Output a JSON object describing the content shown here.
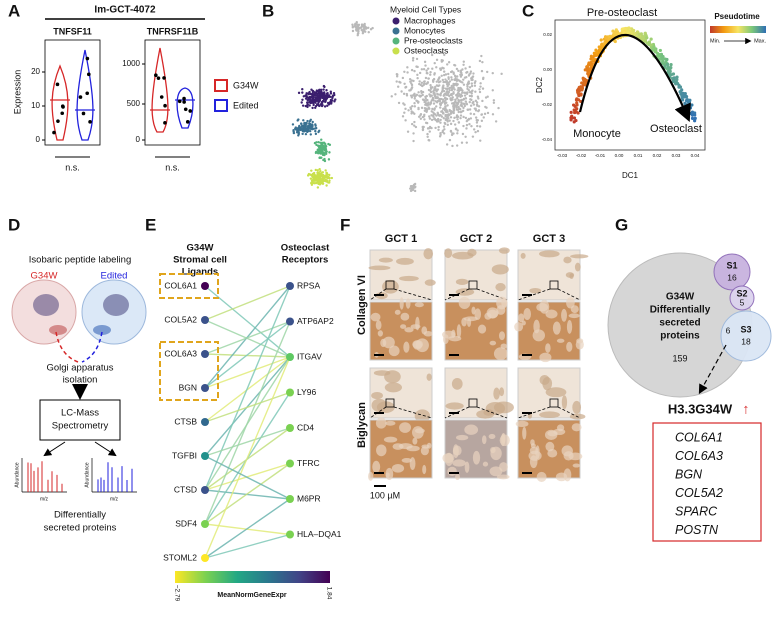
{
  "panels": {
    "a": {
      "label": "A",
      "title": "Im-GCT-4072",
      "ylabel": "Expression",
      "plots": [
        {
          "title": "TNFSF11",
          "yticks": [
            "0",
            "10",
            "20"
          ],
          "sig": "n.s."
        },
        {
          "title": "TNFRSF11B",
          "yticks": [
            "0",
            "500",
            "1000"
          ],
          "sig": "n.s."
        }
      ],
      "legend": [
        {
          "name": "G34W",
          "color": "#d62728"
        },
        {
          "name": "Edited",
          "color": "#2222dd"
        }
      ]
    },
    "b": {
      "label": "B",
      "legend_title": "Myeloid Cell Types",
      "legend": [
        {
          "name": "Macrophages",
          "color": "#3b1f6e"
        },
        {
          "name": "Monocytes",
          "color": "#3a7191"
        },
        {
          "name": "Pre-osteoclasts",
          "color": "#55b47c"
        },
        {
          "name": "Osteoclasts",
          "color": "#c9e04c"
        }
      ]
    },
    "c": {
      "label": "C",
      "annotations": [
        "Pre-osteoclast",
        "Monocyte",
        "Osteoclast"
      ],
      "xlabel": "DC1",
      "ylabel": "DC2",
      "xticks": [
        "-0.03",
        "-0.02",
        "-0.01",
        "0.00",
        "0.01",
        "0.02",
        "0.03",
        "0.04"
      ],
      "yticks": [
        "-0.04",
        "-0.02",
        "0.00",
        "0.02"
      ],
      "legend_title": "Pseudotime",
      "legend_min": "Min.",
      "legend_max": "Max."
    },
    "d": {
      "label": "D",
      "step1": "Isobaric peptide labeling",
      "groups": [
        {
          "name": "G34W",
          "color": "#d62728"
        },
        {
          "name": "Edited",
          "color": "#2222dd"
        }
      ],
      "step2": [
        "Golgi apparatus",
        "isolation"
      ],
      "step3": [
        "LC-Mass",
        "Spectrometry"
      ],
      "spectrum_ylabel": "Abundance",
      "spectrum_xlabel": "m/z",
      "result": [
        "Differentially",
        "secreted proteins"
      ]
    },
    "e": {
      "label": "E",
      "left_title": [
        "G34W",
        "Stromal cell",
        "Ligands"
      ],
      "right_title": [
        "Osteoclast",
        "Receptors"
      ],
      "ligands": [
        {
          "name": "COL6A1",
          "color": "#440154"
        },
        {
          "name": "COL5A2",
          "color": "#3b528b"
        },
        {
          "name": "COL6A3",
          "color": "#3b528b"
        },
        {
          "name": "BGN",
          "color": "#3b528b"
        },
        {
          "name": "CTSB",
          "color": "#31688e"
        },
        {
          "name": "TGFBI",
          "color": "#21918c"
        },
        {
          "name": "CTSD",
          "color": "#3b528b"
        },
        {
          "name": "SDF4",
          "color": "#7ad151"
        },
        {
          "name": "STOML2",
          "color": "#fde725"
        }
      ],
      "receptors": [
        {
          "name": "RPSA",
          "color": "#3b528b"
        },
        {
          "name": "ATP6AP2",
          "color": "#3b528b"
        },
        {
          "name": "ITGAV",
          "color": "#5ec962"
        },
        {
          "name": "LY96",
          "color": "#7ad151"
        },
        {
          "name": "CD4",
          "color": "#7ad151"
        },
        {
          "name": "TFRC",
          "color": "#7ad151"
        },
        {
          "name": "M6PR",
          "color": "#7ad151"
        },
        {
          "name": "HLA–DQA1",
          "color": "#7ad151"
        }
      ],
      "colorbar_min": "−2.79",
      "colorbar_max": "1.84",
      "colorbar_label": "MeanNormGeneExpr"
    },
    "f": {
      "label": "F",
      "columns": [
        "GCT 1",
        "GCT 2",
        "GCT 3"
      ],
      "rows": [
        "Collagen VI",
        "Biglycan"
      ],
      "scale": "100 µM"
    },
    "g": {
      "label": "G",
      "main": [
        "G34W",
        "Differentially",
        "secreted",
        "proteins"
      ],
      "main_count": "159",
      "sets": [
        {
          "name": "S1",
          "count": "16"
        },
        {
          "name": "S2",
          "count": "5"
        },
        {
          "name": "S3",
          "count": "18"
        }
      ],
      "overlap": "6",
      "gene_title": "H3.3G34W",
      "arrow": "↑",
      "genes": [
        "COL6A1",
        "COL6A3",
        "BGN",
        "COL5A2",
        "SPARC",
        "POSTN"
      ]
    }
  }
}
